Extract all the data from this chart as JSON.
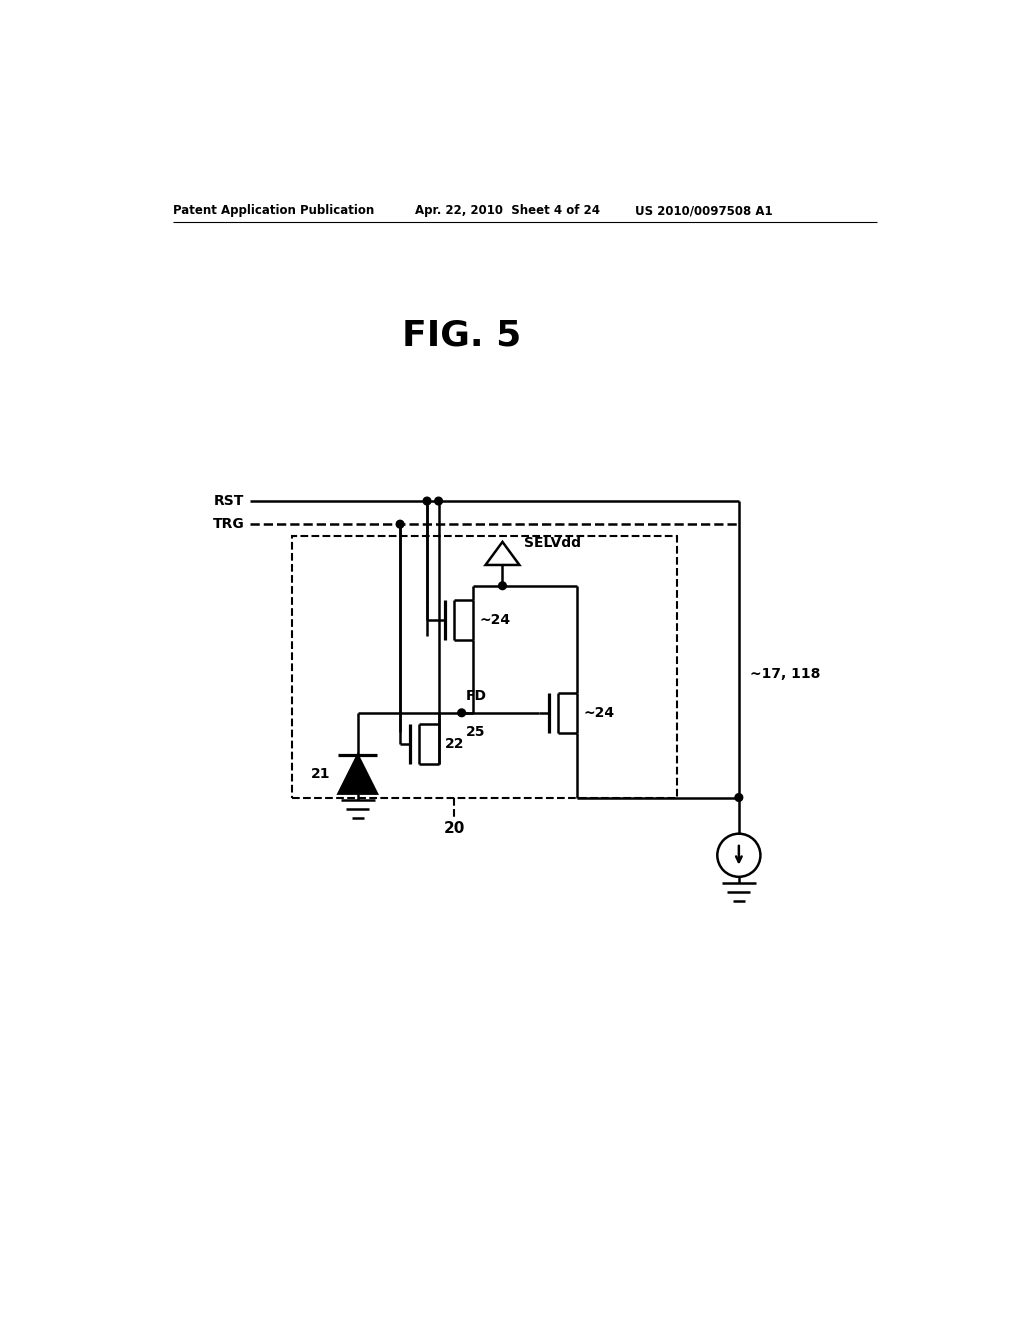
{
  "bg_color": "#ffffff",
  "line_color": "#000000",
  "title": "FIG. 5",
  "header_left": "Patent Application Publication",
  "header_mid": "Apr. 22, 2010  Sheet 4 of 24",
  "header_right": "US 2010/0097508 A1",
  "fig_width": 10.24,
  "fig_height": 13.2,
  "dpi": 100
}
